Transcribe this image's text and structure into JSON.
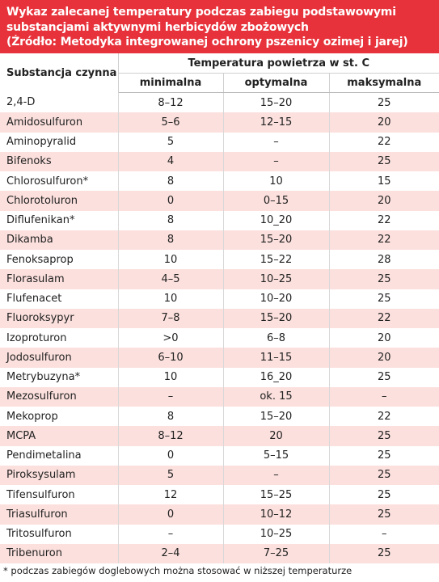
{
  "title_lines": [
    "Wykaz zalecanej temperatury podczas zabiegu podstawowymi",
    "substancjami aktywnymi herbicydów zbożowych",
    "(Źródło: Metodyka integrowanej ochrony pszenicy ozimej i jarej)"
  ],
  "headers": {
    "substance": "Substancja czynna",
    "group": "Temperatura powietrza w st. C",
    "min": "minimalna",
    "opt": "optymalna",
    "max": "maksymalna"
  },
  "rows": [
    [
      "2,4-D",
      "8–12",
      "15–20",
      "25"
    ],
    [
      "Amidosulfuron",
      "5–6",
      "12–15",
      "20"
    ],
    [
      "Aminopyralid",
      "5",
      "–",
      "22"
    ],
    [
      "Bifenoks",
      "4",
      "–",
      "25"
    ],
    [
      "Chlorosulfuron*",
      "8",
      "10",
      "15"
    ],
    [
      "Chlorotoluron",
      "0",
      "0–15",
      "20"
    ],
    [
      "Diflufenikan*",
      "8",
      "10_20",
      "22"
    ],
    [
      "Dikamba",
      "8",
      "15–20",
      "22"
    ],
    [
      "Fenoksaprop",
      "10",
      "15–22",
      "28"
    ],
    [
      "Florasulam",
      "4–5",
      "10–25",
      "25"
    ],
    [
      "Flufenacet",
      "10",
      "10–20",
      "25"
    ],
    [
      "Fluoroksypyr",
      "7–8",
      "15–20",
      "22"
    ],
    [
      "Izoproturon",
      ">0",
      "6–8",
      "20"
    ],
    [
      "Jodosulfuron",
      "6–10",
      "11–15",
      "20"
    ],
    [
      "Metrybuzyna*",
      "10",
      "16_20",
      "25"
    ],
    [
      "Mezosulfuron",
      "–",
      "ok. 15",
      "–"
    ],
    [
      "Mekoprop",
      "8",
      "15–20",
      "22"
    ],
    [
      "MCPA",
      "8–12",
      "20",
      "25"
    ],
    [
      "Pendimetalina",
      "0",
      "5–15",
      "25"
    ],
    [
      "Piroksysulam",
      "5",
      "–",
      "25"
    ],
    [
      "Tifensulfuron",
      "12",
      "15–25",
      "25"
    ],
    [
      "Triasulfuron",
      "0",
      "10–12",
      "25"
    ],
    [
      "Tritosulfuron",
      "–",
      "10–25",
      "–"
    ],
    [
      "Tribenuron",
      "2–4",
      "7–25",
      "25"
    ]
  ],
  "footnote": "* podczas zabiegów doglebowych można stosować w niższej temperaturze",
  "colors": {
    "title_bg": "#e8323b",
    "stripe": "#fbe0dd"
  }
}
